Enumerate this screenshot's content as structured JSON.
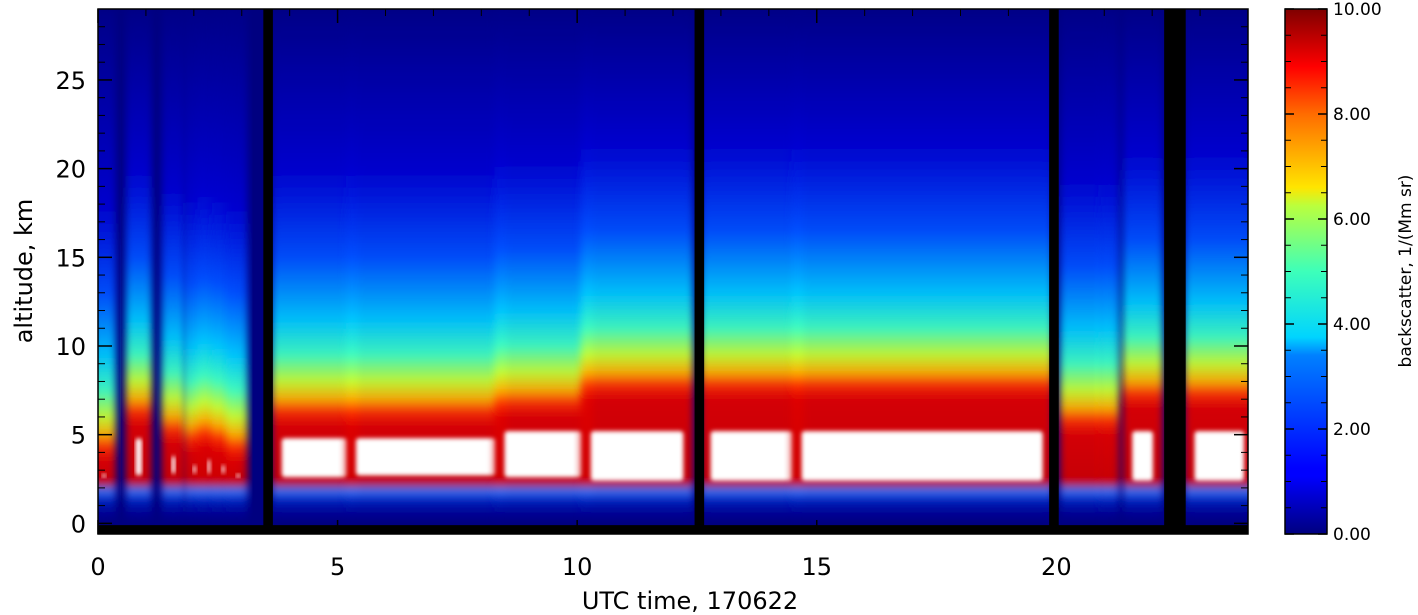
{
  "chart_data": {
    "type": "heatmap",
    "title": "",
    "xlabel": "UTC time, 170622",
    "ylabel": "altitude, km",
    "xlim": [
      0,
      24
    ],
    "ylim": [
      -0.6,
      29
    ],
    "x_ticks": [
      0,
      5,
      10,
      15,
      20
    ],
    "x_tick_labels": [
      "0",
      "5",
      "10",
      "15",
      "20"
    ],
    "y_ticks": [
      0,
      5,
      10,
      15,
      20,
      25
    ],
    "y_tick_labels": [
      "0",
      "5",
      "10",
      "15",
      "20",
      "25"
    ],
    "grid": false,
    "colorbar": {
      "label": "backscatter, 1/(Mm sr)",
      "range": [
        0,
        10
      ],
      "ticks": [
        0,
        2,
        4,
        6,
        8,
        10
      ],
      "tick_labels": [
        "0.00",
        "2.00",
        "4.00",
        "6.00",
        "8.00",
        "10.00"
      ],
      "colormap": "jet",
      "over_color": "#ffffff",
      "missing_color": "#000000"
    },
    "missing_data_hours": [
      [
        3.45,
        3.65
      ],
      [
        12.45,
        12.65
      ],
      [
        19.85,
        20.05
      ],
      [
        22.25,
        22.7
      ]
    ],
    "aerosol_cloud_layers": [
      {
        "t_start": 0.0,
        "t_end": 0.25,
        "base_km": 2.6,
        "top_km": 4.0,
        "saturated": true
      },
      {
        "t_start": 0.7,
        "t_end": 1.0,
        "base_km": 2.4,
        "top_km": 6.0,
        "saturated": true
      },
      {
        "t_start": 1.45,
        "t_end": 1.7,
        "base_km": 2.5,
        "top_km": 5.0,
        "saturated": true
      },
      {
        "t_start": 1.9,
        "t_end": 2.15,
        "base_km": 2.5,
        "top_km": 4.5,
        "saturated": true
      },
      {
        "t_start": 2.2,
        "t_end": 2.45,
        "base_km": 2.5,
        "top_km": 4.8,
        "saturated": true
      },
      {
        "t_start": 2.5,
        "t_end": 2.75,
        "base_km": 2.5,
        "top_km": 4.5,
        "saturated": true
      },
      {
        "t_start": 2.8,
        "t_end": 3.0,
        "base_km": 2.5,
        "top_km": 4.0,
        "saturated": true
      },
      {
        "t_start": 3.75,
        "t_end": 5.3,
        "base_km": 2.3,
        "top_km": 6.0,
        "saturated": true
      },
      {
        "t_start": 5.3,
        "t_end": 8.4,
        "base_km": 2.4,
        "top_km": 6.0,
        "saturated": true
      },
      {
        "t_start": 8.4,
        "t_end": 10.2,
        "base_km": 2.3,
        "top_km": 6.5,
        "saturated": true
      },
      {
        "t_start": 10.2,
        "t_end": 12.3,
        "base_km": 2.1,
        "top_km": 7.5,
        "saturated": true
      },
      {
        "t_start": 12.7,
        "t_end": 14.6,
        "base_km": 2.1,
        "top_km": 7.5,
        "saturated": true
      },
      {
        "t_start": 14.6,
        "t_end": 19.8,
        "base_km": 2.1,
        "top_km": 7.5,
        "saturated": true
      },
      {
        "t_start": 20.2,
        "t_end": 20.9,
        "base_km": 2.1,
        "top_km": 5.5,
        "saturated": false
      },
      {
        "t_start": 21.0,
        "t_end": 21.2,
        "base_km": 2.1,
        "top_km": 5.5,
        "saturated": false
      },
      {
        "t_start": 21.5,
        "t_end": 22.1,
        "base_km": 2.1,
        "top_km": 7.0,
        "saturated": true
      },
      {
        "t_start": 22.8,
        "t_end": 24.0,
        "base_km": 2.1,
        "top_km": 7.0,
        "saturated": true
      }
    ]
  }
}
